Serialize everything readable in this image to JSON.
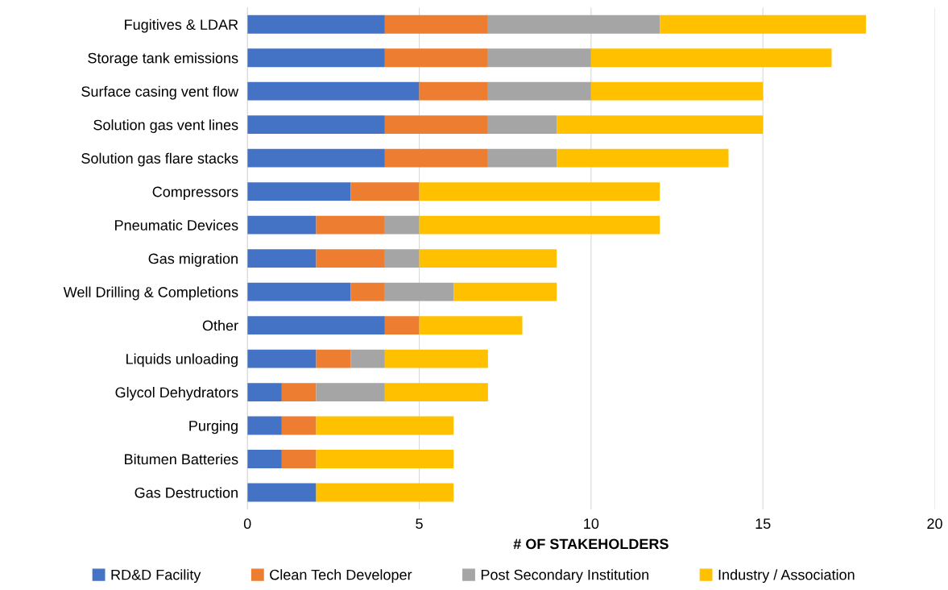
{
  "chart_data": {
    "type": "bar",
    "orientation": "horizontal",
    "stacked": true,
    "xlabel": "# OF STAKEHOLDERS",
    "categories": [
      "Fugitives & LDAR",
      "Storage tank emissions",
      "Surface casing vent flow",
      "Solution gas vent lines",
      "Solution gas flare stacks",
      "Compressors",
      "Pneumatic Devices",
      "Gas migration",
      "Well Drilling & Completions",
      "Other",
      "Liquids unloading",
      "Glycol Dehydrators",
      "Purging",
      "Bitumen Batteries",
      "Gas Destruction"
    ],
    "series": [
      {
        "name": "RD&D Facility",
        "color": "#4472c4",
        "values": [
          4,
          4,
          5,
          4,
          4,
          3,
          2,
          2,
          3,
          4,
          2,
          1,
          1,
          1,
          2
        ]
      },
      {
        "name": "Clean Tech Developer",
        "color": "#ed7d31",
        "values": [
          3,
          3,
          2,
          3,
          3,
          2,
          2,
          2,
          1,
          1,
          1,
          1,
          1,
          1,
          0
        ]
      },
      {
        "name": "Post Secondary Institution",
        "color": "#a5a5a5",
        "values": [
          5,
          3,
          3,
          2,
          2,
          0,
          1,
          1,
          2,
          0,
          1,
          2,
          0,
          0,
          0
        ]
      },
      {
        "name": "Industry / Association",
        "color": "#ffc000",
        "values": [
          6,
          7,
          5,
          6,
          5,
          7,
          7,
          4,
          3,
          3,
          3,
          3,
          4,
          4,
          4
        ]
      }
    ],
    "xlim": [
      0,
      20
    ],
    "xticks": [
      0,
      5,
      10,
      15,
      20
    ],
    "grid": "x",
    "legend": "bottom"
  }
}
